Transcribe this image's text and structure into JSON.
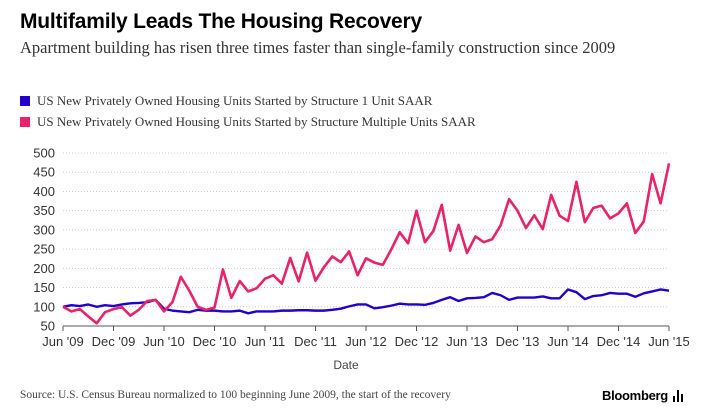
{
  "chart_data": {
    "type": "line",
    "title": "Multifamily Leads The Housing Recovery",
    "subtitle": "Apartment building has risen three times faster than single-family construction since 2009",
    "xlabel": "Date",
    "ylabel": "",
    "ylim": [
      50,
      500
    ],
    "yticks": [
      50,
      100,
      150,
      200,
      250,
      300,
      350,
      400,
      450,
      500
    ],
    "grid": true,
    "legend_position": "top-left",
    "x_tick_labels": [
      "Jun '09",
      "Dec '09",
      "Jun '10",
      "Dec '10",
      "Jun '11",
      "Dec '11",
      "Jun '12",
      "Dec '12",
      "Jun '13",
      "Dec '13",
      "Jun '14",
      "Dec '14",
      "Jun '15"
    ],
    "x_tick_positions": [
      0,
      6,
      12,
      18,
      24,
      30,
      36,
      42,
      48,
      54,
      60,
      66,
      72
    ],
    "x_range": [
      0,
      72
    ],
    "series": [
      {
        "name": "US New Privately Owned Housing Units Started by Structure 1 Unit SAAR",
        "color": "#2200cc",
        "values": [
          100,
          104,
          102,
          106,
          100,
          104,
          102,
          106,
          109,
          110,
          112,
          118,
          95,
          90,
          88,
          86,
          92,
          90,
          90,
          88,
          88,
          90,
          83,
          88,
          88,
          88,
          90,
          90,
          91,
          91,
          90,
          90,
          92,
          95,
          101,
          106,
          106,
          96,
          99,
          103,
          108,
          106,
          106,
          105,
          110,
          118,
          125,
          115,
          122,
          123,
          125,
          136,
          130,
          118,
          124,
          124,
          124,
          127,
          122,
          122,
          145,
          138,
          120,
          128,
          130,
          136,
          134,
          134,
          126,
          135,
          140,
          145,
          142
        ]
      },
      {
        "name": "US New Privately Owned Housing Units Started by Structure Multiple Units SAAR",
        "color": "#e8236a",
        "values": [
          100,
          88,
          94,
          75,
          57,
          86,
          94,
          99,
          77,
          92,
          115,
          118,
          88,
          112,
          178,
          142,
          100,
          92,
          98,
          197,
          123,
          167,
          140,
          148,
          173,
          182,
          160,
          227,
          166,
          241,
          168,
          203,
          231,
          216,
          244,
          182,
          226,
          215,
          209,
          249,
          294,
          265,
          350,
          268,
          297,
          365,
          246,
          313,
          240,
          283,
          268,
          276,
          312,
          380,
          350,
          305,
          338,
          302,
          391,
          337,
          323,
          425,
          320,
          357,
          363,
          330,
          343,
          369,
          292,
          322,
          445,
          369,
          473
        ]
      }
    ]
  },
  "source": "Source: U.S. Census Bureau normalized to 100 beginning June 2009, the start of the recovery",
  "brand": "Bloomberg",
  "colors": {
    "single_family": "#2200cc",
    "multifamily": "#e8236a",
    "grid": "#cccccc"
  },
  "icons": {
    "brand_icon": "bar-chart-icon"
  }
}
